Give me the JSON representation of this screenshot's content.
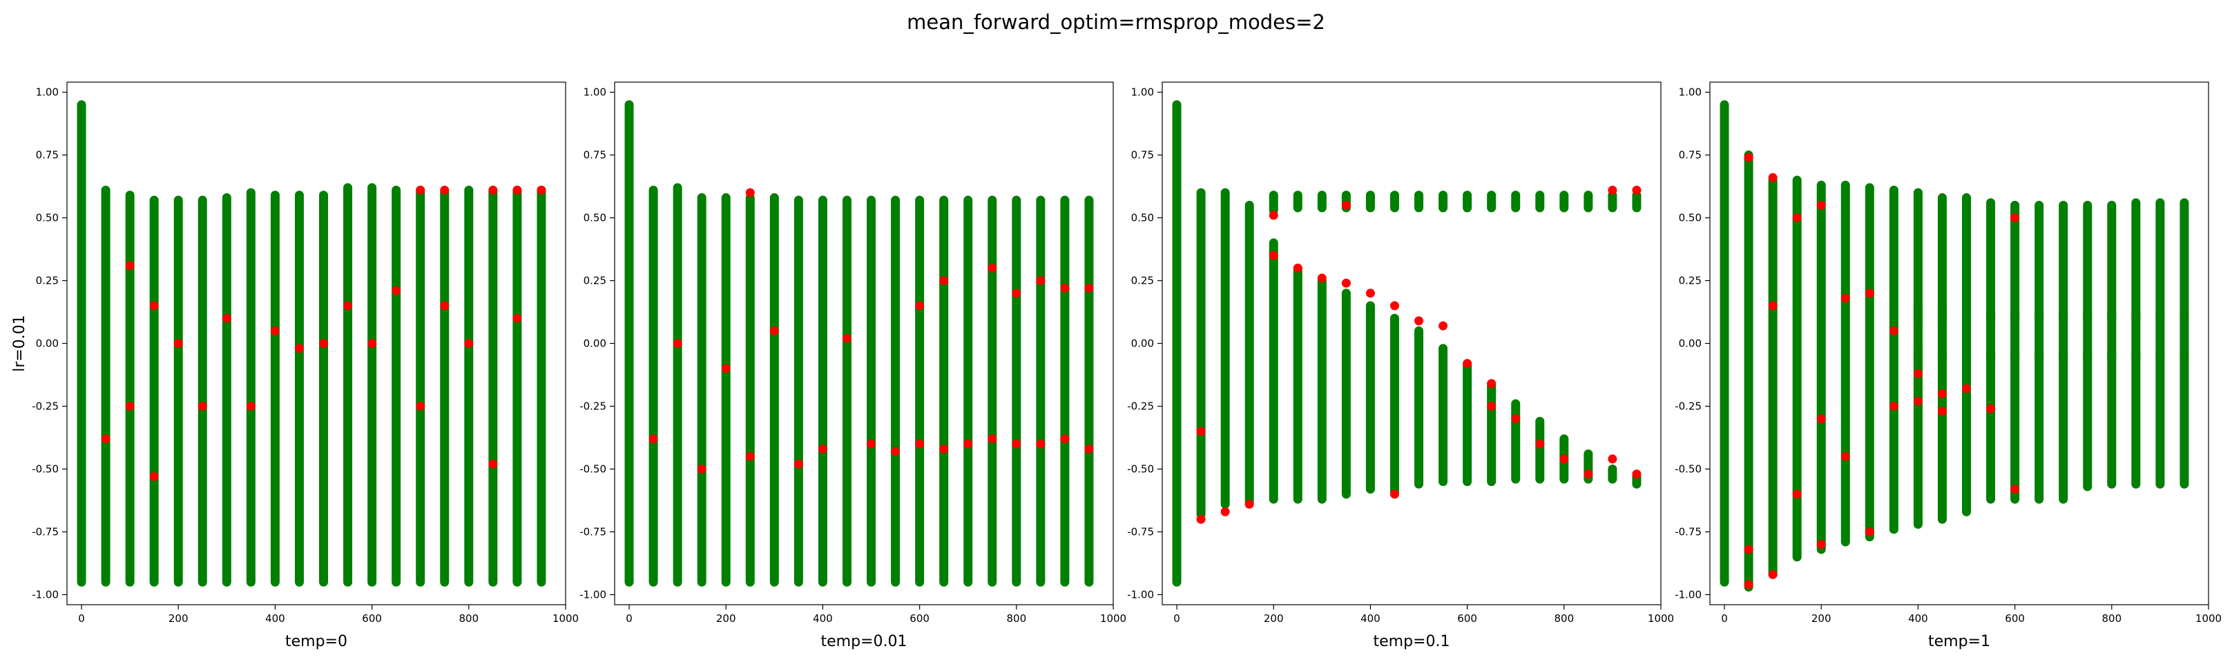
{
  "figure": {
    "title": "mean_forward_optim=rmsprop_modes=2"
  },
  "colors": {
    "green": "#007f00",
    "red": "#ff0000"
  },
  "chart_data": [
    {
      "type": "scatter",
      "xlabel": "temp=0",
      "ylabel": "lr=0.01",
      "xlim": [
        -30,
        1000
      ],
      "ylim": [
        -1.04,
        1.04
      ],
      "xticks": [
        0,
        200,
        400,
        600,
        800,
        1000
      ],
      "yticks": [
        -1.0,
        -0.75,
        -0.5,
        -0.25,
        0.0,
        0.25,
        0.5,
        0.75,
        1.0
      ],
      "grid": false,
      "series": [
        {
          "color": "green",
          "x": [
            0,
            50,
            100,
            150,
            200,
            250,
            300,
            350,
            400,
            450,
            500,
            550,
            600,
            650,
            700,
            750,
            800,
            850,
            900,
            950
          ],
          "y_max": [
            0.95,
            0.61,
            0.59,
            0.57,
            0.57,
            0.57,
            0.58,
            0.6,
            0.59,
            0.59,
            0.59,
            0.62,
            0.62,
            0.61,
            0.61,
            0.6,
            0.61,
            0.61,
            0.61,
            0.61
          ],
          "y_min": [
            -0.95,
            -0.95,
            -0.95,
            -0.95,
            -0.95,
            -0.95,
            -0.95,
            -0.95,
            -0.95,
            -0.95,
            -0.95,
            -0.95,
            -0.95,
            -0.95,
            -0.95,
            -0.95,
            -0.95,
            -0.95,
            -0.95,
            -0.95
          ]
        },
        {
          "color": "red",
          "points": [
            [
              50,
              -0.38
            ],
            [
              100,
              0.31
            ],
            [
              100,
              -0.25
            ],
            [
              150,
              0.15
            ],
            [
              150,
              -0.53
            ],
            [
              200,
              0.0
            ],
            [
              250,
              -0.25
            ],
            [
              300,
              0.1
            ],
            [
              350,
              -0.25
            ],
            [
              400,
              0.05
            ],
            [
              450,
              -0.02
            ],
            [
              500,
              0.0
            ],
            [
              550,
              0.15
            ],
            [
              600,
              0.0
            ],
            [
              650,
              0.21
            ],
            [
              700,
              0.61
            ],
            [
              700,
              -0.25
            ],
            [
              750,
              0.61
            ],
            [
              750,
              0.15
            ],
            [
              800,
              0.0
            ],
            [
              850,
              0.61
            ],
            [
              850,
              -0.48
            ],
            [
              900,
              0.61
            ],
            [
              900,
              0.1
            ],
            [
              950,
              0.61
            ]
          ]
        }
      ]
    },
    {
      "type": "scatter",
      "xlabel": "temp=0.01",
      "ylabel": "",
      "xlim": [
        -30,
        1000
      ],
      "ylim": [
        -1.04,
        1.04
      ],
      "xticks": [
        0,
        200,
        400,
        600,
        800,
        1000
      ],
      "yticks": [
        -1.0,
        -0.75,
        -0.5,
        -0.25,
        0.0,
        0.25,
        0.5,
        0.75,
        1.0
      ],
      "grid": false,
      "series": [
        {
          "color": "green",
          "x": [
            0,
            50,
            100,
            150,
            200,
            250,
            300,
            350,
            400,
            450,
            500,
            550,
            600,
            650,
            700,
            750,
            800,
            850,
            900,
            950
          ],
          "y_max": [
            0.95,
            0.61,
            0.62,
            0.58,
            0.58,
            0.58,
            0.58,
            0.57,
            0.57,
            0.57,
            0.57,
            0.57,
            0.57,
            0.57,
            0.57,
            0.57,
            0.57,
            0.57,
            0.57,
            0.57
          ],
          "y_min": [
            -0.95,
            -0.95,
            -0.95,
            -0.95,
            -0.95,
            -0.95,
            -0.95,
            -0.95,
            -0.95,
            -0.95,
            -0.95,
            -0.95,
            -0.95,
            -0.95,
            -0.95,
            -0.95,
            -0.95,
            -0.95,
            -0.95,
            -0.95
          ]
        },
        {
          "color": "red",
          "points": [
            [
              50,
              -0.38
            ],
            [
              100,
              0.0
            ],
            [
              150,
              -0.5
            ],
            [
              200,
              -0.1
            ],
            [
              250,
              0.6
            ],
            [
              250,
              -0.45
            ],
            [
              300,
              0.05
            ],
            [
              350,
              -0.48
            ],
            [
              400,
              -0.42
            ],
            [
              450,
              0.02
            ],
            [
              500,
              -0.4
            ],
            [
              550,
              -0.43
            ],
            [
              600,
              0.15
            ],
            [
              600,
              -0.4
            ],
            [
              650,
              0.25
            ],
            [
              650,
              -0.42
            ],
            [
              700,
              -0.4
            ],
            [
              750,
              0.3
            ],
            [
              750,
              -0.38
            ],
            [
              800,
              0.2
            ],
            [
              800,
              -0.4
            ],
            [
              850,
              0.25
            ],
            [
              850,
              -0.4
            ],
            [
              900,
              0.22
            ],
            [
              900,
              -0.38
            ],
            [
              950,
              0.22
            ],
            [
              950,
              -0.42
            ]
          ]
        }
      ]
    },
    {
      "type": "scatter",
      "xlabel": "temp=0.1",
      "ylabel": "",
      "xlim": [
        -30,
        1000
      ],
      "ylim": [
        -1.04,
        1.04
      ],
      "xticks": [
        0,
        200,
        400,
        600,
        800,
        1000
      ],
      "yticks": [
        -1.0,
        -0.75,
        -0.5,
        -0.25,
        0.0,
        0.25,
        0.5,
        0.75,
        1.0
      ],
      "grid": false,
      "series": [
        {
          "color": "green",
          "x": [
            0,
            50,
            100,
            150,
            200,
            250,
            300,
            350,
            400,
            450,
            500,
            550,
            600,
            650,
            700,
            750,
            800,
            850,
            900,
            950
          ],
          "y_max": [
            0.95,
            0.6,
            0.6,
            0.55,
            0.4,
            0.3,
            0.25,
            0.2,
            0.15,
            0.1,
            0.05,
            -0.02,
            -0.08,
            -0.16,
            -0.24,
            -0.31,
            -0.38,
            -0.44,
            -0.5,
            -0.53
          ],
          "y_min": [
            -0.95,
            -0.68,
            -0.64,
            -0.63,
            -0.62,
            -0.62,
            -0.62,
            -0.6,
            -0.58,
            -0.59,
            -0.56,
            -0.55,
            -0.55,
            -0.55,
            -0.54,
            -0.54,
            -0.54,
            -0.54,
            -0.54,
            -0.56
          ]
        },
        {
          "color": "green",
          "x": [
            200,
            250,
            300,
            350,
            400,
            450,
            500,
            550,
            600,
            650,
            700,
            750,
            800,
            850,
            900,
            950
          ],
          "y_max": [
            0.59,
            0.59,
            0.59,
            0.59,
            0.59,
            0.59,
            0.59,
            0.59,
            0.59,
            0.59,
            0.59,
            0.59,
            0.59,
            0.59,
            0.59,
            0.59
          ],
          "y_min": [
            0.53,
            0.54,
            0.54,
            0.54,
            0.54,
            0.54,
            0.54,
            0.54,
            0.54,
            0.54,
            0.54,
            0.54,
            0.54,
            0.54,
            0.54,
            0.54
          ]
        },
        {
          "color": "red",
          "points": [
            [
              50,
              -0.7
            ],
            [
              50,
              -0.35
            ],
            [
              100,
              -0.67
            ],
            [
              150,
              -0.64
            ],
            [
              200,
              0.51
            ],
            [
              200,
              0.35
            ],
            [
              250,
              0.3
            ],
            [
              300,
              0.26
            ],
            [
              350,
              0.24
            ],
            [
              350,
              0.55
            ],
            [
              400,
              0.2
            ],
            [
              450,
              0.15
            ],
            [
              450,
              -0.6
            ],
            [
              500,
              0.09
            ],
            [
              550,
              0.07
            ],
            [
              600,
              -0.08
            ],
            [
              650,
              -0.16
            ],
            [
              650,
              -0.25
            ],
            [
              700,
              -0.3
            ],
            [
              750,
              -0.4
            ],
            [
              800,
              -0.46
            ],
            [
              850,
              -0.52
            ],
            [
              900,
              -0.46
            ],
            [
              900,
              0.61
            ],
            [
              950,
              0.61
            ],
            [
              950,
              -0.52
            ]
          ]
        }
      ]
    },
    {
      "type": "scatter",
      "xlabel": "temp=1",
      "ylabel": "",
      "xlim": [
        -30,
        1000
      ],
      "ylim": [
        -1.04,
        1.04
      ],
      "xticks": [
        0,
        200,
        400,
        600,
        800,
        1000
      ],
      "yticks": [
        -1.0,
        -0.75,
        -0.5,
        -0.25,
        0.0,
        0.25,
        0.5,
        0.75,
        1.0
      ],
      "grid": false,
      "series": [
        {
          "color": "green",
          "x": [
            0,
            50,
            100,
            150,
            200,
            250,
            300,
            350,
            400,
            450,
            500,
            550,
            600,
            650,
            700,
            750,
            800,
            850,
            900,
            950
          ],
          "y_max": [
            0.95,
            0.75,
            0.65,
            0.65,
            0.63,
            0.63,
            0.62,
            0.61,
            0.6,
            0.58,
            0.58,
            0.56,
            0.55,
            0.55,
            0.55,
            0.55,
            0.55,
            0.56,
            0.56,
            0.56
          ],
          "y_min": [
            -0.95,
            -0.97,
            -0.92,
            -0.85,
            -0.82,
            -0.79,
            -0.77,
            -0.74,
            -0.72,
            -0.7,
            -0.67,
            -0.62,
            -0.62,
            -0.62,
            -0.62,
            -0.57,
            -0.56,
            -0.56,
            -0.56,
            -0.56
          ]
        },
        {
          "color": "green",
          "x": [
            400,
            450,
            500,
            550,
            600,
            650,
            700,
            750,
            800,
            850,
            900,
            950
          ],
          "y_max": [
            0.15,
            0.14,
            0.13,
            0.12,
            0.12,
            0.12,
            0.12,
            0.12,
            0.12,
            0.12,
            0.12,
            0.12
          ],
          "y_min": [
            0.08,
            0.08,
            0.09,
            0.09,
            0.09,
            0.1,
            0.1,
            0.1,
            0.1,
            0.1,
            0.1,
            0.1
          ]
        },
        {
          "color": "green",
          "x": [
            400,
            450,
            500,
            550,
            600,
            650,
            700,
            750,
            800,
            850,
            900,
            950
          ],
          "y_max": [
            -0.02,
            -0.03,
            -0.03,
            -0.04,
            -0.04,
            -0.04,
            -0.04,
            -0.04,
            -0.04,
            -0.04,
            -0.04,
            -0.04
          ],
          "y_min": [
            -0.08,
            -0.07,
            -0.07,
            -0.07,
            -0.06,
            -0.06,
            -0.06,
            -0.06,
            -0.06,
            -0.06,
            -0.06,
            -0.06
          ]
        },
        {
          "color": "red",
          "points": [
            [
              50,
              0.74
            ],
            [
              50,
              -0.96
            ],
            [
              50,
              -0.82
            ],
            [
              100,
              0.66
            ],
            [
              100,
              -0.92
            ],
            [
              100,
              0.15
            ],
            [
              150,
              0.5
            ],
            [
              150,
              -0.6
            ],
            [
              200,
              0.55
            ],
            [
              200,
              -0.8
            ],
            [
              200,
              -0.3
            ],
            [
              250,
              0.18
            ],
            [
              250,
              -0.45
            ],
            [
              300,
              0.2
            ],
            [
              300,
              -0.75
            ],
            [
              350,
              0.05
            ],
            [
              350,
              -0.25
            ],
            [
              400,
              -0.12
            ],
            [
              400,
              -0.23
            ],
            [
              450,
              -0.2
            ],
            [
              450,
              -0.27
            ],
            [
              500,
              -0.18
            ],
            [
              550,
              -0.26
            ],
            [
              600,
              0.5
            ],
            [
              600,
              -0.58
            ]
          ]
        }
      ]
    }
  ]
}
